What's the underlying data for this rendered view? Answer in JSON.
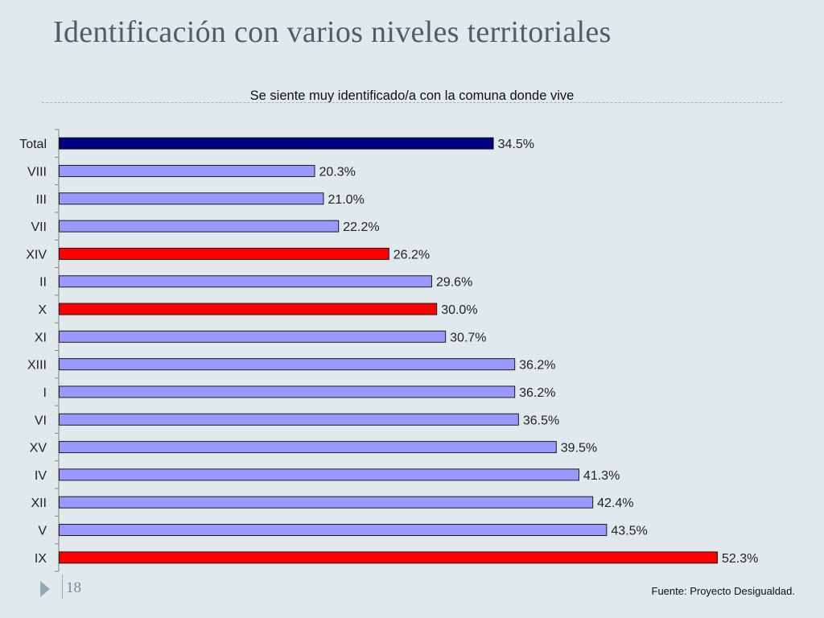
{
  "slide": {
    "title": "Identificación con varios niveles territoriales",
    "page_number": "18",
    "source": "Fuente: Proyecto Desigualdad."
  },
  "colors": {
    "total": "#000080",
    "default": "#9999ff",
    "highlight": "#ff0000",
    "bar_outline": "#1a1a1a"
  },
  "chart_data": {
    "type": "bar",
    "orientation": "horizontal",
    "title": "Se siente muy identificado/a con la comuna donde vive",
    "xlabel": "",
    "ylabel": "",
    "xlim": [
      0,
      60
    ],
    "grid": false,
    "legend": "none",
    "categories": [
      "Total",
      "VIII",
      "III",
      "VII",
      "XIV",
      "II",
      "X",
      "XI",
      "XIII",
      "I",
      "VI",
      "XV",
      "IV",
      "XII",
      "V",
      "IX"
    ],
    "values": [
      34.5,
      20.3,
      21.0,
      22.2,
      26.2,
      29.6,
      30.0,
      30.7,
      36.2,
      36.2,
      36.5,
      39.5,
      41.3,
      42.4,
      43.5,
      52.3
    ],
    "labels": [
      "34.5%",
      "20.3%",
      "21.0%",
      "22.2%",
      "26.2%",
      "29.6%",
      "30.0%",
      "30.7%",
      "36.2%",
      "36.2%",
      "36.5%",
      "39.5%",
      "41.3%",
      "42.4%",
      "43.5%",
      "52.3%"
    ],
    "bar_colors": [
      "total",
      "default",
      "default",
      "default",
      "highlight",
      "default",
      "highlight",
      "default",
      "default",
      "default",
      "default",
      "default",
      "default",
      "default",
      "default",
      "highlight"
    ]
  }
}
